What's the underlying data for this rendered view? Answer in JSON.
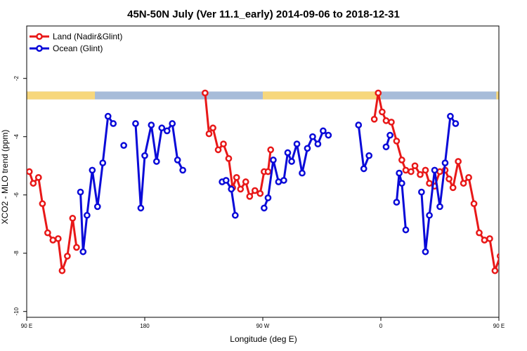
{
  "chart_data": {
    "type": "line",
    "title": "45N-50N July (Ver 11.1_early)   2014-09-06 to 2018-12-31",
    "xlabel": "Longitude (deg E)",
    "ylabel": "XCO2 - MLO trend (ppm)",
    "xlim": [
      90,
      450
    ],
    "ylim": [
      -10.2,
      -0.2
    ],
    "x_ticks": [
      {
        "value": 90,
        "label": "90 E"
      },
      {
        "value": 180,
        "label": "180"
      },
      {
        "value": 270,
        "label": "90 W"
      },
      {
        "value": 360,
        "label": "0"
      },
      {
        "value": 450,
        "label": "90 E"
      },
      {
        "value": 540,
        "label": "180"
      }
    ],
    "y_ticks": [
      {
        "value": -2,
        "label": "-2"
      },
      {
        "value": -4,
        "label": "-4"
      },
      {
        "value": -6,
        "label": "-6"
      },
      {
        "value": -8,
        "label": "-8"
      },
      {
        "value": -10,
        "label": "-10"
      }
    ],
    "legend_position": "top-left",
    "land_strip": {
      "y_range": [
        -2.72,
        -2.45
      ],
      "ocean_color": "#a7bcd9",
      "land_color": "#f7d77c",
      "land_ranges": [
        [
          90,
          142
        ],
        [
          270,
          360
        ],
        [
          448,
          450
        ]
      ]
    },
    "series": [
      {
        "name": "Land (Nadir&Glint)",
        "color": "#e81818",
        "segments": [
          [
            [
              92,
              -5.2
            ],
            [
              95,
              -5.6
            ],
            [
              99,
              -5.4
            ],
            [
              102,
              -6.3
            ],
            [
              106,
              -7.3
            ],
            [
              110,
              -7.55
            ],
            [
              114,
              -7.5
            ],
            [
              117,
              -8.6
            ],
            [
              121,
              -8.1
            ],
            [
              125,
              -6.8
            ],
            [
              128,
              -7.8
            ]
          ],
          [
            [
              226,
              -2.5
            ],
            [
              229,
              -3.9
            ],
            [
              232,
              -3.7
            ],
            [
              236,
              -4.45
            ],
            [
              240,
              -4.25
            ],
            [
              244,
              -4.75
            ],
            [
              247,
              -5.75
            ],
            [
              250,
              -5.4
            ],
            [
              253,
              -5.8
            ],
            [
              257,
              -5.55
            ],
            [
              260,
              -6.05
            ],
            [
              264,
              -5.85
            ],
            [
              268,
              -5.95
            ],
            [
              271,
              -5.2
            ],
            [
              274,
              -5.2
            ],
            [
              276,
              -4.45
            ]
          ],
          [
            [
              355,
              -3.4
            ],
            [
              358,
              -2.5
            ],
            [
              361,
              -3.15
            ],
            [
              364,
              -3.45
            ],
            [
              368,
              -3.5
            ],
            [
              372,
              -4.15
            ],
            [
              376,
              -4.8
            ],
            [
              379,
              -5.15
            ],
            [
              383,
              -5.2
            ],
            [
              386,
              -5.0
            ],
            [
              390,
              -5.3
            ],
            [
              394,
              -5.15
            ],
            [
              397,
              -5.6
            ],
            [
              401,
              -5.7
            ],
            [
              405,
              -5.2
            ],
            [
              409,
              -5.15
            ],
            [
              412,
              -5.45
            ],
            [
              415,
              -5.75
            ],
            [
              419,
              -4.85
            ],
            [
              423,
              -5.6
            ],
            [
              427,
              -5.4
            ],
            [
              431,
              -6.3
            ],
            [
              435,
              -7.3
            ],
            [
              439,
              -7.55
            ],
            [
              443,
              -7.5
            ],
            [
              447,
              -8.6
            ],
            [
              451,
              -8.1
            ],
            [
              455,
              -6.8
            ],
            [
              458,
              -7.8
            ]
          ]
        ]
      },
      {
        "name": "Ocean (Glint)",
        "color": "#0a0ad8",
        "segments": [
          [
            [
              131,
              -5.9
            ],
            [
              133,
              -7.95
            ],
            [
              136,
              -6.7
            ],
            [
              140,
              -5.15
            ],
            [
              144,
              -6.4
            ],
            [
              148,
              -4.9
            ],
            [
              152,
              -3.3
            ],
            [
              156,
              -3.55
            ]
          ],
          [
            [
              164,
              -4.3
            ]
          ],
          [
            [
              173,
              -3.55
            ],
            [
              177,
              -6.45
            ],
            [
              180,
              -4.65
            ],
            [
              185,
              -3.6
            ],
            [
              189,
              -4.85
            ],
            [
              193,
              -3.7
            ],
            [
              197,
              -3.8
            ],
            [
              201,
              -3.55
            ],
            [
              205,
              -4.8
            ],
            [
              209,
              -5.15
            ]
          ],
          [
            [
              239,
              -5.55
            ],
            [
              242,
              -5.5
            ],
            [
              246,
              -5.8
            ],
            [
              249,
              -6.7
            ]
          ],
          [
            [
              271,
              -6.45
            ],
            [
              274,
              -6.1
            ],
            [
              278,
              -4.8
            ],
            [
              282,
              -5.55
            ],
            [
              286,
              -5.5
            ],
            [
              289,
              -4.55
            ],
            [
              292,
              -4.85
            ],
            [
              296,
              -4.25
            ],
            [
              300,
              -5.25
            ],
            [
              304,
              -4.4
            ],
            [
              308,
              -4.0
            ],
            [
              312,
              -4.25
            ],
            [
              316,
              -3.8
            ],
            [
              320,
              -3.95
            ]
          ],
          [
            [
              343,
              -3.6
            ],
            [
              347,
              -5.1
            ],
            [
              351,
              -4.65
            ]
          ],
          [
            [
              364,
              -4.35
            ],
            [
              367,
              -3.95
            ]
          ],
          [
            [
              372,
              -6.25
            ],
            [
              374,
              -5.25
            ],
            [
              376,
              -5.6
            ],
            [
              379,
              -7.2
            ]
          ],
          [
            [
              391,
              -5.9
            ],
            [
              394,
              -7.95
            ],
            [
              397,
              -6.7
            ],
            [
              401,
              -5.15
            ],
            [
              405,
              -6.4
            ],
            [
              409,
              -4.9
            ],
            [
              413,
              -3.3
            ],
            [
              417,
              -3.55
            ]
          ]
        ]
      }
    ]
  }
}
